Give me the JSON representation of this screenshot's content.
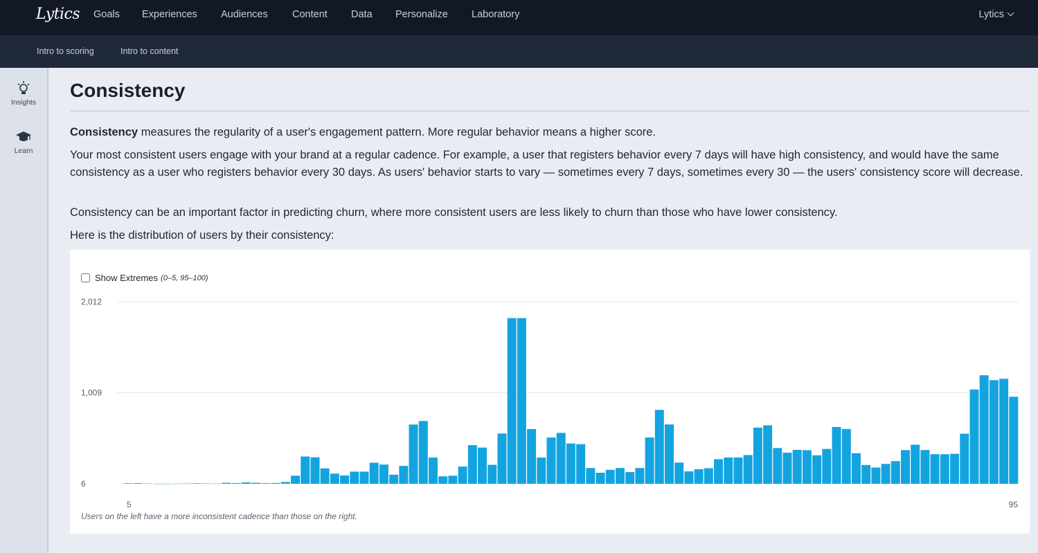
{
  "nav": {
    "logo": "Lytics",
    "items": [
      "Goals",
      "Experiences",
      "Audiences",
      "Content",
      "Data",
      "Personalize",
      "Laboratory"
    ],
    "user": "Lytics"
  },
  "subnav": {
    "items": [
      "Intro to scoring",
      "Intro to content"
    ]
  },
  "sidebar": {
    "items": [
      "Insights",
      "Learn"
    ]
  },
  "main": {
    "title": "Consistency",
    "p1_bold": "Consistency",
    "p1_rest": " measures the regularity of a user's engagement pattern. More regular behavior means a higher score.",
    "p2": "Your most consistent users engage with your brand at a regular cadence. For example, a user that registers behavior every 7 days will have high consistency, and would have the same consistency as a user who registers behavior every 30 days. As users' behavior starts to vary — sometimes every 7 days, sometimes every 30 — the users' consistency score will decrease.",
    "p3": "Consistency can be an important factor in predicting churn, where more consistent users are less likely to churn than those who have lower consistency.",
    "p4": "Here is the distribution of users by their consistency:"
  },
  "chart_controls": {
    "show_extremes_label": "Show Extremes",
    "show_extremes_range": "(0–5, 95–100)",
    "show_extremes_checked": false
  },
  "chart_data": {
    "type": "bar",
    "title": "",
    "xlabel": "",
    "ylabel": "",
    "x_tick_labels": [
      "5",
      "95"
    ],
    "y_tick_labels": [
      "2,012",
      "1,009",
      "6"
    ],
    "ylim": [
      6,
      2012
    ],
    "x_start": 5,
    "color": "#13a4e0",
    "values": [
      12,
      13,
      9,
      7,
      7,
      8,
      9,
      12,
      9,
      9,
      17,
      14,
      21,
      17,
      13,
      15,
      26,
      95,
      307,
      298,
      176,
      118,
      98,
      140,
      140,
      238,
      218,
      106,
      203,
      659,
      698,
      295,
      88,
      95,
      196,
      432,
      405,
      215,
      560,
      1832,
      1832,
      609,
      295,
      516,
      567,
      450,
      443,
      180,
      128,
      160,
      180,
      135,
      180,
      516,
      820,
      660,
      240,
      143,
      167,
      178,
      277,
      296,
      296,
      323,
      625,
      650,
      400,
      349,
      380,
      376,
      320,
      390,
      632,
      610,
      343,
      213,
      185,
      225,
      256,
      377,
      437,
      378,
      332,
      332,
      337,
      558,
      1045,
      1202,
      1148,
      1163,
      965
    ],
    "caption": "Users on the left have a more inconsistent cadence than those on the right."
  }
}
